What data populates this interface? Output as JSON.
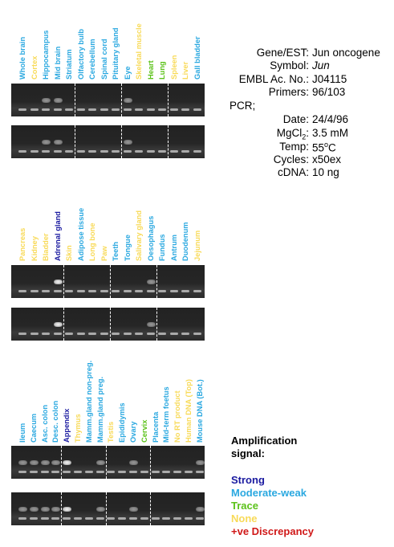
{
  "colors": {
    "strong": "#1a1aa0",
    "moderate_weak": "#2aa8e0",
    "trace": "#5cc21a",
    "none": "#f8da58",
    "discrepancy": "#d01818"
  },
  "panels": [
    {
      "lanes": [
        {
          "label": "Whole brain",
          "signal": "moderate_weak"
        },
        {
          "label": "Cortex",
          "signal": "none"
        },
        {
          "label": "Hippocampus",
          "signal": "moderate_weak"
        },
        {
          "label": "Mid brain",
          "signal": "moderate_weak"
        },
        {
          "label": "Striatum",
          "signal": "moderate_weak"
        },
        {
          "label": "Olfactory bulb",
          "signal": "moderate_weak"
        },
        {
          "label": "Cerebellum",
          "signal": "moderate_weak"
        },
        {
          "label": "Spinal cord",
          "signal": "moderate_weak"
        },
        {
          "label": "Pituitary gland",
          "signal": "moderate_weak"
        },
        {
          "label": "Eye",
          "signal": "moderate_weak"
        },
        {
          "label": "Skeletal muscle",
          "signal": "none"
        },
        {
          "label": "Heart",
          "signal": "trace"
        },
        {
          "label": "Lung",
          "signal": "trace"
        },
        {
          "label": "Spleen",
          "signal": "none"
        },
        {
          "label": "Liver",
          "signal": "none"
        },
        {
          "label": "Gall bladder",
          "signal": "moderate_weak"
        }
      ],
      "dividers_after": [
        4,
        8,
        12
      ],
      "bands": [
        2,
        3,
        9
      ]
    },
    {
      "lanes": [
        {
          "label": "Pancreas",
          "signal": "none"
        },
        {
          "label": "Kidney",
          "signal": "none"
        },
        {
          "label": "Bladder",
          "signal": "none"
        },
        {
          "label": "Adrenal gland",
          "signal": "strong"
        },
        {
          "label": "Skin",
          "signal": "none"
        },
        {
          "label": "Adipose tissue",
          "signal": "moderate_weak"
        },
        {
          "label": "Long bone",
          "signal": "none"
        },
        {
          "label": "Paw",
          "signal": "none"
        },
        {
          "label": "Teeth",
          "signal": "moderate_weak"
        },
        {
          "label": "Tongue",
          "signal": "moderate_weak"
        },
        {
          "label": "Salivary gland",
          "signal": "none"
        },
        {
          "label": "Oesophagus",
          "signal": "moderate_weak"
        },
        {
          "label": "Fundus",
          "signal": "moderate_weak"
        },
        {
          "label": "Antrum",
          "signal": "moderate_weak"
        },
        {
          "label": "Duodenum",
          "signal": "moderate_weak"
        },
        {
          "label": "Jejunum",
          "signal": "none"
        }
      ],
      "dividers_after": [
        3,
        7,
        11
      ],
      "bands": [
        3,
        11
      ]
    },
    {
      "lanes": [
        {
          "label": "Ileum",
          "signal": "moderate_weak"
        },
        {
          "label": "Caecum",
          "signal": "moderate_weak"
        },
        {
          "label": "Asc. colon",
          "signal": "moderate_weak"
        },
        {
          "label": "Desc. colon",
          "signal": "moderate_weak"
        },
        {
          "label": "Appendix",
          "signal": "strong"
        },
        {
          "label": "Thymus",
          "signal": "none"
        },
        {
          "label": "Mamm.gland non-preg.",
          "signal": "moderate_weak"
        },
        {
          "label": "Mamm.gland preg.",
          "signal": "moderate_weak"
        },
        {
          "label": "Testis",
          "signal": "none"
        },
        {
          "label": "Epididymis",
          "signal": "moderate_weak"
        },
        {
          "label": "Ovary",
          "signal": "moderate_weak"
        },
        {
          "label": "Cervix",
          "signal": "trace"
        },
        {
          "label": "Placenta",
          "signal": "moderate_weak"
        },
        {
          "label": "Mid-term foetus",
          "signal": "moderate_weak"
        },
        {
          "label": "No RT product",
          "signal": "none"
        },
        {
          "label": "Human DNA (Top)",
          "signal": "none"
        },
        {
          "label": "Mouse DNA (Bot.)",
          "signal": "moderate_weak"
        }
      ],
      "dividers_after": [
        3,
        7,
        11
      ],
      "bands": [
        0,
        1,
        2,
        3,
        4,
        7,
        10,
        16
      ]
    }
  ],
  "info": {
    "gene_key": "Gene/EST:",
    "gene_val": "Jun oncogene",
    "symbol_key": "Symbol:",
    "symbol_val": "Jun",
    "embl_key": "EMBL Ac. No.:",
    "embl_val": "J04115",
    "primers_key": "Primers:",
    "primers_val": "96/103",
    "pcr_key": "PCR;",
    "date_key": "Date:",
    "date_val": "24/4/96",
    "mgcl_key_main": "MgCl",
    "mgcl_key_sub": "2",
    "mgcl_key_colon": ":",
    "mgcl_val": "3.5 mM",
    "temp_key": "Temp:",
    "temp_val_num": "55",
    "temp_val_sup": "o",
    "temp_val_unit": "C",
    "cycles_key": "Cycles:",
    "cycles_val": "x50ex",
    "cdna_key": "cDNA:",
    "cdna_val": "10 ng"
  },
  "legend": {
    "title_line1": "Amplification",
    "title_line2": "signal:",
    "strong": "Strong",
    "moderate_weak": "Moderate-weak",
    "trace": "Trace",
    "none": "None",
    "discrepancy": "+ve Discrepancy"
  }
}
